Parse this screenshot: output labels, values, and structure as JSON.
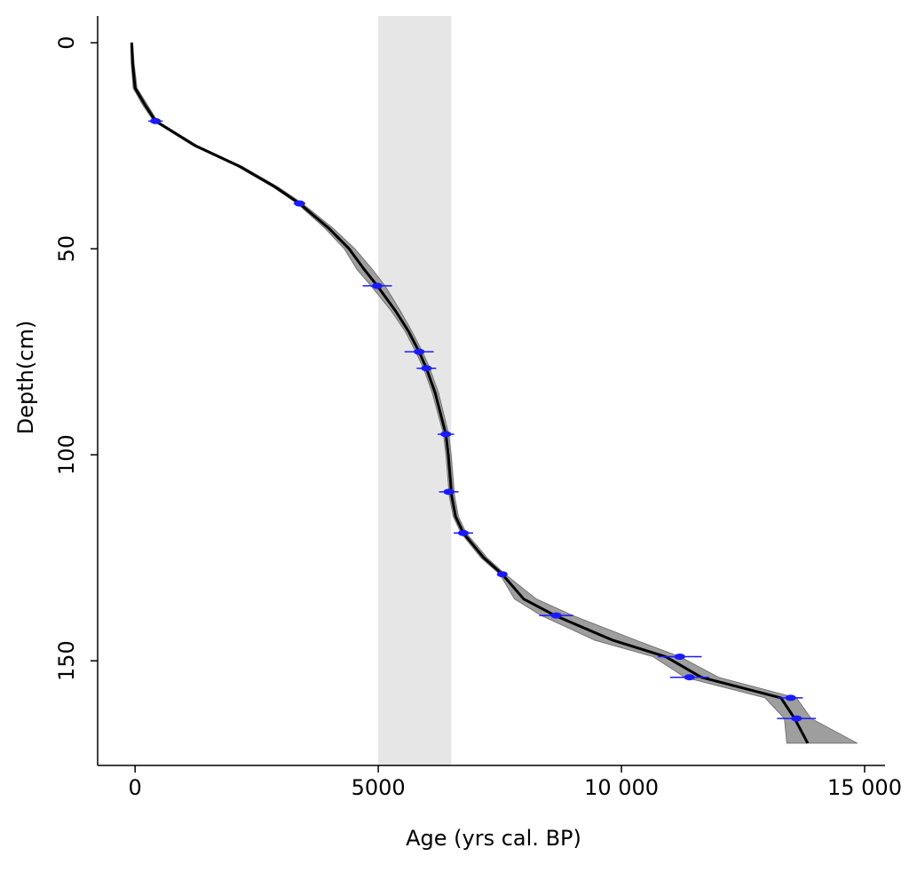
{
  "chart_data": {
    "type": "age-depth",
    "x_label": "Age (yrs cal. BP)",
    "y_label": "Depth(cm)",
    "xlim": [
      -770,
      15420
    ],
    "ylim": [
      -6.5,
      175.4
    ],
    "y_inverted": true,
    "xticks": [
      0,
      5000,
      {
        "value": 10000,
        "label": "10 000"
      },
      {
        "value": 15000,
        "label": "15 000"
      }
    ],
    "yticks": [
      0,
      50,
      100,
      150
    ],
    "highlight_band": [
      5000,
      6500
    ],
    "highlight_color": "#e6e6e6",
    "curve_color": "#000000",
    "band_color": "#9e9e9e",
    "date_color": "#1a1aff",
    "curve": {
      "depth": [
        0,
        5,
        11,
        15,
        19,
        25,
        30,
        35,
        39,
        45,
        50,
        55,
        59,
        65,
        70,
        75,
        79,
        85,
        95,
        100,
        110,
        115,
        119,
        125,
        129,
        135,
        139,
        145,
        149,
        154,
        159,
        164,
        170
      ],
      "age": [
        -70,
        -50,
        0,
        200,
        420,
        1240,
        2150,
        2880,
        3380,
        3980,
        4400,
        4710,
        4980,
        5350,
        5620,
        5840,
        5990,
        6170,
        6390,
        6440,
        6510,
        6590,
        6750,
        7170,
        7550,
        7990,
        8630,
        9820,
        10910,
        11640,
        13280,
        13560,
        13830
      ],
      "lower": [
        -90,
        -80,
        -40,
        150,
        380,
        1190,
        2100,
        2830,
        3330,
        3900,
        4300,
        4560,
        4850,
        5260,
        5550,
        5770,
        5930,
        6110,
        6340,
        6390,
        6460,
        6540,
        6700,
        7110,
        7500,
        7800,
        8350,
        9450,
        10650,
        11300,
        12950,
        13350,
        13400
      ],
      "upper": [
        -50,
        -20,
        40,
        250,
        460,
        1290,
        2200,
        2940,
        3440,
        4070,
        4520,
        4880,
        5140,
        5450,
        5690,
        5910,
        6060,
        6240,
        6450,
        6500,
        6570,
        6650,
        6810,
        7240,
        7610,
        8250,
        9000,
        10300,
        11200,
        12000,
        13600,
        13900,
        14850
      ]
    },
    "dates": {
      "depth": [
        19,
        39,
        59,
        75,
        79,
        95,
        109,
        119,
        129,
        139,
        149,
        154,
        159,
        164
      ],
      "age": [
        420,
        3380,
        4980,
        5840,
        5990,
        6390,
        6450,
        6750,
        7550,
        8660,
        11200,
        11400,
        13480,
        13600
      ],
      "error": [
        150,
        120,
        300,
        300,
        200,
        170,
        200,
        200,
        100,
        350,
        450,
        400,
        250,
        400
      ]
    }
  }
}
